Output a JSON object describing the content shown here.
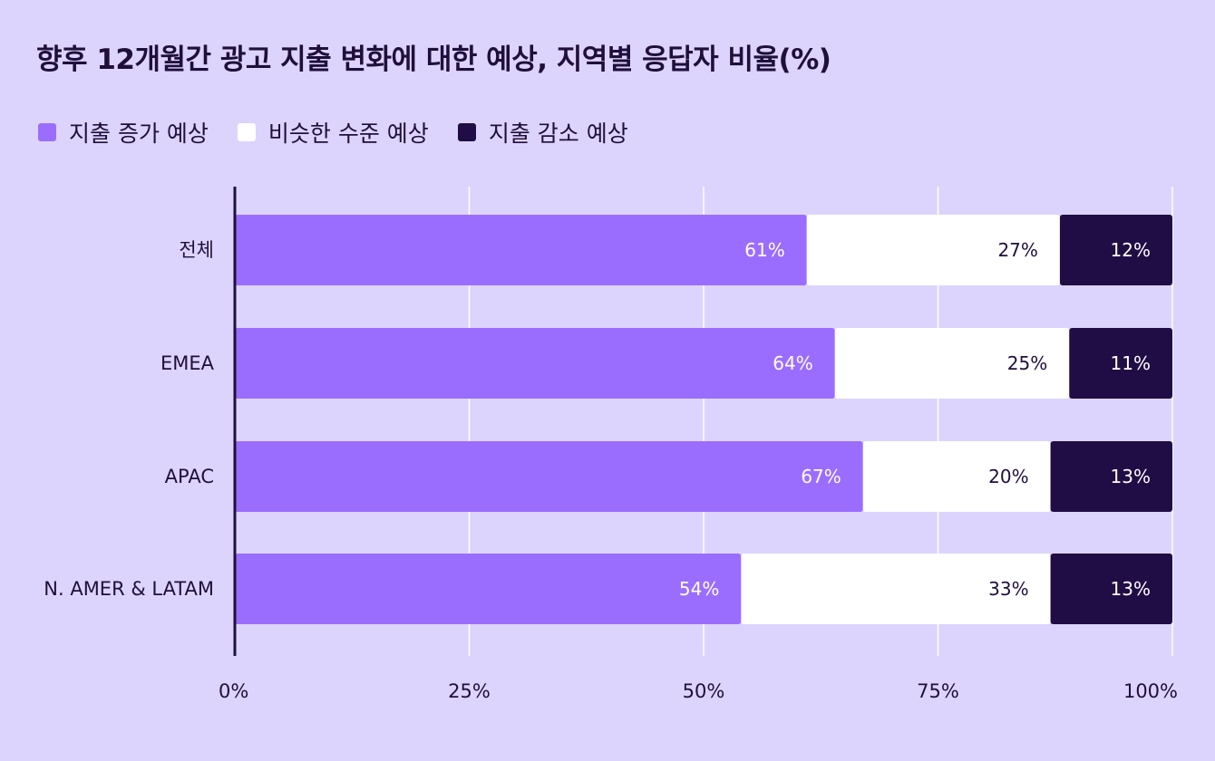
{
  "colors": {
    "background": "#ddd4fd",
    "increase": "#9b6dff",
    "same": "#ffffff",
    "decrease": "#200d45",
    "text": "#1f0f3d",
    "grid": "#ffffff"
  },
  "chart_data": {
    "type": "bar",
    "orientation": "horizontal",
    "stacked": true,
    "title": "향후 12개월간 광고 지출 변화에 대한 예상, 지역별 응답자 비율(%)",
    "categories": [
      "전체",
      "EMEA",
      "APAC",
      "N. AMER & LATAM"
    ],
    "series": [
      {
        "name": "지출 증가 예상",
        "values": [
          61,
          64,
          67,
          54
        ],
        "labels": [
          "61%",
          "64%",
          "67%",
          "54%"
        ]
      },
      {
        "name": "비슷한 수준 예상",
        "values": [
          27,
          25,
          20,
          33
        ],
        "labels": [
          "27%",
          "25%",
          "20%",
          "33%"
        ]
      },
      {
        "name": "지출 감소 예상",
        "values": [
          12,
          11,
          13,
          13
        ],
        "labels": [
          "12%",
          "11%",
          "13%",
          "13%"
        ]
      }
    ],
    "xlim": [
      0,
      100
    ],
    "xticks": [
      0,
      25,
      50,
      75,
      100
    ],
    "xtick_labels": [
      "0%",
      "25%",
      "50%",
      "75%",
      "100%"
    ],
    "grid": true,
    "legend_position": "top-left"
  }
}
